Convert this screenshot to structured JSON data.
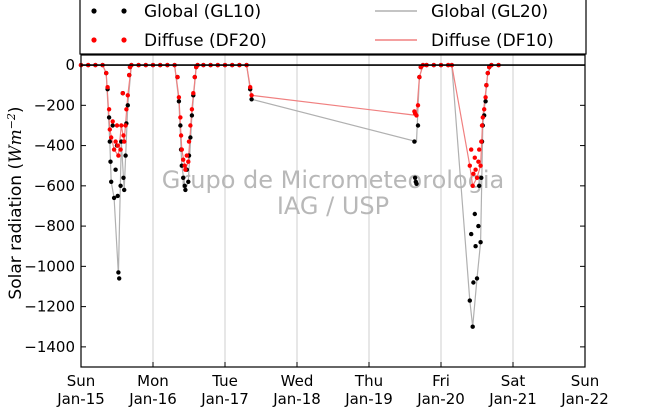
{
  "chart_data": {
    "type": "scatter",
    "ylabel": "Solar radiation (",
    "ylabel_units": "Wm",
    "ylabel_exp": "−2",
    "ylabel_close": ")",
    "xlim": [
      0,
      7
    ],
    "ylim": [
      -1500,
      50
    ],
    "yticks": [
      0,
      -200,
      -400,
      -600,
      -800,
      -1000,
      -1200,
      -1400
    ],
    "x_ticks": [
      {
        "x": 0,
        "day": "Sun",
        "date": "Jan-15"
      },
      {
        "x": 1,
        "day": "Mon",
        "date": "Jan-16"
      },
      {
        "x": 2,
        "day": "Tue",
        "date": "Jan-17"
      },
      {
        "x": 3,
        "day": "Wed",
        "date": "Jan-18"
      },
      {
        "x": 4,
        "day": "Thu",
        "date": "Jan-19"
      },
      {
        "x": 5,
        "day": "Fri",
        "date": "Jan-20"
      },
      {
        "x": 6,
        "day": "Sat",
        "date": "Jan-21"
      },
      {
        "x": 7,
        "day": "Sun",
        "date": "Jan-22"
      }
    ],
    "grid": "vertical",
    "legend_placement": "top",
    "watermark": [
      "Grupo de Micrometeorologia",
      "IAG / USP"
    ],
    "series": [
      {
        "name": "Global (GL10)",
        "style": "points",
        "color": "#000000",
        "points": [
          [
            0.0,
            0
          ],
          [
            0.1,
            0
          ],
          [
            0.2,
            0
          ],
          [
            0.3,
            0
          ],
          [
            0.35,
            -40
          ],
          [
            0.37,
            -120
          ],
          [
            0.39,
            -260
          ],
          [
            0.4,
            -380
          ],
          [
            0.41,
            -480
          ],
          [
            0.42,
            -580
          ],
          [
            0.44,
            -300
          ],
          [
            0.46,
            -660
          ],
          [
            0.48,
            -520
          ],
          [
            0.5,
            -400
          ],
          [
            0.51,
            -650
          ],
          [
            0.52,
            -1030
          ],
          [
            0.53,
            -1060
          ],
          [
            0.55,
            -600
          ],
          [
            0.56,
            -380
          ],
          [
            0.58,
            -140
          ],
          [
            0.59,
            -560
          ],
          [
            0.6,
            -620
          ],
          [
            0.62,
            -450
          ],
          [
            0.63,
            -290
          ],
          [
            0.65,
            -200
          ],
          [
            0.67,
            -50
          ],
          [
            0.68,
            -10
          ],
          [
            0.7,
            0
          ],
          [
            0.8,
            0
          ],
          [
            0.9,
            0
          ],
          [
            1.0,
            0
          ],
          [
            1.1,
            0
          ],
          [
            1.2,
            0
          ],
          [
            1.3,
            0
          ],
          [
            1.34,
            -60
          ],
          [
            1.36,
            -180
          ],
          [
            1.38,
            -300
          ],
          [
            1.39,
            -420
          ],
          [
            1.4,
            -500
          ],
          [
            1.42,
            -560
          ],
          [
            1.44,
            -600
          ],
          [
            1.45,
            -620
          ],
          [
            1.47,
            -520
          ],
          [
            1.49,
            -580
          ],
          [
            1.5,
            -450
          ],
          [
            1.52,
            -360
          ],
          [
            1.54,
            -250
          ],
          [
            1.56,
            -150
          ],
          [
            1.58,
            -60
          ],
          [
            1.6,
            -10
          ],
          [
            1.62,
            0
          ],
          [
            1.7,
            0
          ],
          [
            1.8,
            0
          ],
          [
            1.9,
            0
          ],
          [
            2.0,
            0
          ],
          [
            2.1,
            0
          ],
          [
            2.2,
            0
          ],
          [
            2.3,
            0
          ],
          [
            2.35,
            -120
          ],
          [
            2.37,
            -170
          ],
          [
            4.63,
            -380
          ],
          [
            4.64,
            -560
          ],
          [
            4.65,
            -580
          ],
          [
            4.66,
            -590
          ],
          [
            4.68,
            -300
          ],
          [
            4.7,
            -60
          ],
          [
            4.72,
            -10
          ],
          [
            4.75,
            0
          ],
          [
            4.8,
            0
          ],
          [
            4.9,
            0
          ],
          [
            5.0,
            0
          ],
          [
            5.1,
            0
          ],
          [
            5.15,
            0
          ],
          [
            5.4,
            -1170
          ],
          [
            5.42,
            -840
          ],
          [
            5.44,
            -1300
          ],
          [
            5.45,
            -1080
          ],
          [
            5.47,
            -740
          ],
          [
            5.48,
            -900
          ],
          [
            5.5,
            -1060
          ],
          [
            5.52,
            -800
          ],
          [
            5.53,
            -600
          ],
          [
            5.55,
            -880
          ],
          [
            5.56,
            -560
          ],
          [
            5.57,
            -380
          ],
          [
            5.58,
            -300
          ],
          [
            5.6,
            -250
          ],
          [
            5.62,
            -180
          ],
          [
            5.63,
            -100
          ],
          [
            5.65,
            -40
          ],
          [
            5.67,
            -10
          ],
          [
            5.7,
            0
          ],
          [
            5.8,
            0
          ]
        ]
      },
      {
        "name": "Diffuse (DF20)",
        "style": "points",
        "color": "#ff0000",
        "points": [
          [
            0.0,
            0
          ],
          [
            0.1,
            0
          ],
          [
            0.2,
            0
          ],
          [
            0.3,
            0
          ],
          [
            0.35,
            -40
          ],
          [
            0.37,
            -110
          ],
          [
            0.39,
            -220
          ],
          [
            0.4,
            -320
          ],
          [
            0.42,
            -360
          ],
          [
            0.44,
            -280
          ],
          [
            0.46,
            -420
          ],
          [
            0.48,
            -380
          ],
          [
            0.5,
            -300
          ],
          [
            0.51,
            -400
          ],
          [
            0.52,
            -450
          ],
          [
            0.55,
            -420
          ],
          [
            0.56,
            -300
          ],
          [
            0.58,
            -140
          ],
          [
            0.59,
            -350
          ],
          [
            0.6,
            -380
          ],
          [
            0.62,
            -300
          ],
          [
            0.63,
            -220
          ],
          [
            0.65,
            -150
          ],
          [
            0.67,
            -50
          ],
          [
            0.68,
            -10
          ],
          [
            0.7,
            0
          ],
          [
            0.8,
            0
          ],
          [
            0.9,
            0
          ],
          [
            1.0,
            0
          ],
          [
            1.1,
            0
          ],
          [
            1.2,
            0
          ],
          [
            1.3,
            0
          ],
          [
            1.34,
            -60
          ],
          [
            1.36,
            -160
          ],
          [
            1.38,
            -260
          ],
          [
            1.39,
            -350
          ],
          [
            1.4,
            -420
          ],
          [
            1.42,
            -470
          ],
          [
            1.44,
            -500
          ],
          [
            1.45,
            -520
          ],
          [
            1.47,
            -450
          ],
          [
            1.49,
            -480
          ],
          [
            1.5,
            -380
          ],
          [
            1.52,
            -300
          ],
          [
            1.54,
            -220
          ],
          [
            1.56,
            -140
          ],
          [
            1.58,
            -60
          ],
          [
            1.6,
            -10
          ],
          [
            1.62,
            0
          ],
          [
            1.7,
            0
          ],
          [
            1.8,
            0
          ],
          [
            1.9,
            0
          ],
          [
            2.0,
            0
          ],
          [
            2.1,
            0
          ],
          [
            2.2,
            0
          ],
          [
            2.3,
            0
          ],
          [
            2.35,
            -110
          ],
          [
            2.37,
            -150
          ],
          [
            4.63,
            -230
          ],
          [
            4.64,
            -240
          ],
          [
            4.66,
            -250
          ],
          [
            4.68,
            -200
          ],
          [
            4.7,
            -60
          ],
          [
            4.72,
            -10
          ],
          [
            4.75,
            0
          ],
          [
            4.8,
            0
          ],
          [
            4.9,
            0
          ],
          [
            5.0,
            0
          ],
          [
            5.1,
            0
          ],
          [
            5.15,
            0
          ],
          [
            5.4,
            -500
          ],
          [
            5.42,
            -420
          ],
          [
            5.44,
            -600
          ],
          [
            5.45,
            -540
          ],
          [
            5.47,
            -460
          ],
          [
            5.48,
            -520
          ],
          [
            5.5,
            -560
          ],
          [
            5.52,
            -480
          ],
          [
            5.53,
            -420
          ],
          [
            5.55,
            -500
          ],
          [
            5.56,
            -380
          ],
          [
            5.57,
            -300
          ],
          [
            5.58,
            -260
          ],
          [
            5.6,
            -220
          ],
          [
            5.62,
            -160
          ],
          [
            5.63,
            -100
          ],
          [
            5.65,
            -40
          ],
          [
            5.67,
            -10
          ],
          [
            5.7,
            0
          ],
          [
            5.8,
            0
          ]
        ]
      },
      {
        "name": "Global (GL20)",
        "style": "line",
        "color": "#b0b0b0",
        "points": [
          [
            0.0,
            0
          ],
          [
            0.3,
            0
          ],
          [
            0.35,
            -40
          ],
          [
            0.4,
            -380
          ],
          [
            0.42,
            -580
          ],
          [
            0.46,
            -660
          ],
          [
            0.52,
            -1040
          ],
          [
            0.56,
            -380
          ],
          [
            0.6,
            -620
          ],
          [
            0.65,
            -200
          ],
          [
            0.7,
            0
          ],
          [
            1.3,
            0
          ],
          [
            1.36,
            -180
          ],
          [
            1.4,
            -500
          ],
          [
            1.45,
            -620
          ],
          [
            1.49,
            -580
          ],
          [
            1.54,
            -250
          ],
          [
            1.6,
            -10
          ],
          [
            1.62,
            0
          ],
          [
            2.3,
            0
          ],
          [
            2.37,
            -170
          ],
          [
            4.66,
            -380
          ],
          [
            4.7,
            -60
          ],
          [
            4.75,
            0
          ],
          [
            5.15,
            0
          ],
          [
            5.4,
            -1170
          ],
          [
            5.44,
            -1300
          ],
          [
            5.5,
            -1060
          ],
          [
            5.55,
            -880
          ],
          [
            5.58,
            -300
          ],
          [
            5.65,
            -40
          ],
          [
            5.7,
            0
          ],
          [
            5.8,
            0
          ]
        ]
      },
      {
        "name": "Diffuse (DF10)",
        "style": "line",
        "color": "#f08080",
        "points": [
          [
            0.0,
            0
          ],
          [
            0.3,
            0
          ],
          [
            0.35,
            -40
          ],
          [
            0.4,
            -320
          ],
          [
            0.46,
            -420
          ],
          [
            0.52,
            -450
          ],
          [
            0.56,
            -300
          ],
          [
            0.6,
            -380
          ],
          [
            0.65,
            -150
          ],
          [
            0.7,
            0
          ],
          [
            1.3,
            0
          ],
          [
            1.36,
            -160
          ],
          [
            1.4,
            -420
          ],
          [
            1.45,
            -520
          ],
          [
            1.49,
            -480
          ],
          [
            1.54,
            -220
          ],
          [
            1.6,
            -10
          ],
          [
            1.62,
            0
          ],
          [
            2.3,
            0
          ],
          [
            2.37,
            -150
          ],
          [
            4.66,
            -250
          ],
          [
            4.7,
            -60
          ],
          [
            4.75,
            0
          ],
          [
            5.15,
            0
          ],
          [
            5.4,
            -500
          ],
          [
            5.44,
            -600
          ],
          [
            5.5,
            -560
          ],
          [
            5.55,
            -500
          ],
          [
            5.58,
            -260
          ],
          [
            5.65,
            -40
          ],
          [
            5.7,
            0
          ],
          [
            5.8,
            0
          ]
        ]
      }
    ]
  }
}
